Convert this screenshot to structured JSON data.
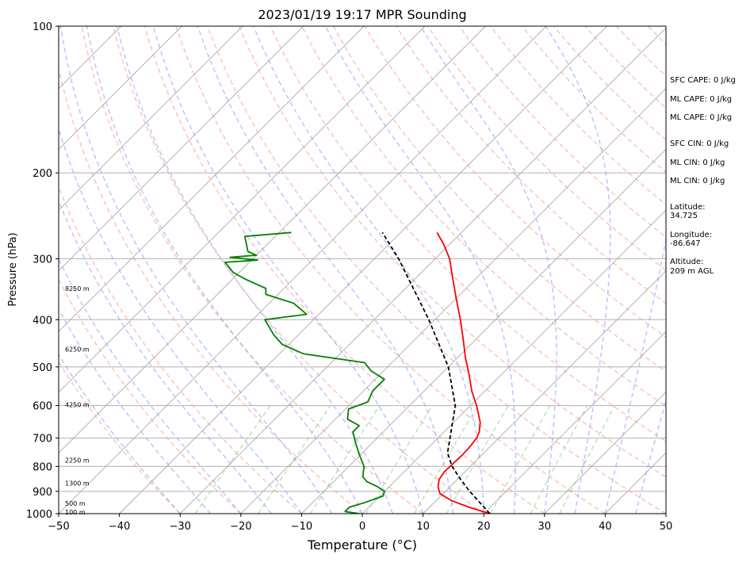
{
  "chart_data": {
    "type": "line",
    "title": "2023/01/19 19:17 MPR Sounding",
    "xlabel": "Temperature (°C)",
    "ylabel": "Pressure (hPa)",
    "xlim": [
      -50,
      50
    ],
    "ylim": [
      1000,
      100
    ],
    "yscale": "log",
    "skew": true,
    "grid": true,
    "x_ticks": [
      "−50",
      "−40",
      "−30",
      "−20",
      "−10",
      "0",
      "10",
      "20",
      "30",
      "40",
      "50"
    ],
    "y_ticks": [
      "1000",
      "900",
      "800",
      "700",
      "600",
      "500",
      "400",
      "300",
      "200",
      "100"
    ],
    "height_labels": [
      {
        "pressure": 992,
        "text": "100 m"
      },
      {
        "pressure": 953,
        "text": "500 m"
      },
      {
        "pressure": 865,
        "text": "1300 m"
      },
      {
        "pressure": 776,
        "text": "2250 m"
      },
      {
        "pressure": 598,
        "text": "4250 m"
      },
      {
        "pressure": 460,
        "text": "6250 m"
      },
      {
        "pressure": 345,
        "text": "8250 m"
      }
    ],
    "series": [
      {
        "name": "Temperature",
        "color": "#ff0000",
        "points": [
          [
            1000,
            21
          ],
          [
            970,
            16.5
          ],
          [
            940,
            12.5
          ],
          [
            910,
            9.5
          ],
          [
            880,
            8
          ],
          [
            850,
            7
          ],
          [
            820,
            6.6
          ],
          [
            790,
            6.7
          ],
          [
            760,
            6.8
          ],
          [
            730,
            6.7
          ],
          [
            700,
            6.4
          ],
          [
            680,
            5.8
          ],
          [
            650,
            4.4
          ],
          [
            600,
            1.0
          ],
          [
            560,
            -2.2
          ],
          [
            520,
            -5.2
          ],
          [
            480,
            -8.6
          ],
          [
            440,
            -12.0
          ],
          [
            400,
            -15.8
          ],
          [
            360,
            -20.2
          ],
          [
            320,
            -25.0
          ],
          [
            300,
            -27.6
          ],
          [
            280,
            -31.0
          ],
          [
            265,
            -34.0
          ]
        ]
      },
      {
        "name": "Dewpoint",
        "color": "#008000",
        "points": [
          [
            1000,
            -0.5
          ],
          [
            990,
            -3.2
          ],
          [
            970,
            -3.2
          ],
          [
            950,
            -1.5
          ],
          [
            920,
            0.5
          ],
          [
            900,
            0
          ],
          [
            880,
            -2
          ],
          [
            860,
            -4.5
          ],
          [
            840,
            -6
          ],
          [
            800,
            -7.5
          ],
          [
            760,
            -10
          ],
          [
            720,
            -12.5
          ],
          [
            680,
            -15
          ],
          [
            660,
            -15
          ],
          [
            640,
            -18
          ],
          [
            610,
            -19.5
          ],
          [
            590,
            -17.5
          ],
          [
            560,
            -18.5
          ],
          [
            530,
            -18.5
          ],
          [
            510,
            -22
          ],
          [
            490,
            -24.5
          ],
          [
            470,
            -36
          ],
          [
            450,
            -41
          ],
          [
            430,
            -44
          ],
          [
            400,
            -48
          ],
          [
            390,
            -42
          ],
          [
            370,
            -46
          ],
          [
            355,
            -52
          ],
          [
            345,
            -53
          ],
          [
            330,
            -58
          ],
          [
            320,
            -61
          ],
          [
            305,
            -64
          ],
          [
            302,
            -59
          ],
          [
            298,
            -64
          ],
          [
            295,
            -60
          ],
          [
            290,
            -62
          ],
          [
            270,
            -65
          ],
          [
            265,
            -58
          ]
        ]
      },
      {
        "name": "Parcel",
        "color": "#000000",
        "style": "dashed",
        "points": [
          [
            1000,
            21
          ],
          [
            900,
            14
          ],
          [
            850,
            10.5
          ],
          [
            800,
            7
          ],
          [
            750,
            4
          ],
          [
            700,
            2
          ],
          [
            600,
            -2.5
          ],
          [
            500,
            -10
          ],
          [
            400,
            -21
          ],
          [
            300,
            -36
          ],
          [
            265,
            -43
          ]
        ]
      }
    ],
    "background_lines": {
      "dry_adiabats_color": "#ff9999",
      "moist_adiabats_color": "#9999ff",
      "mixing_ratio_color": "#88cc88",
      "isotherms_color": "#aaaaaa"
    }
  },
  "side_panel": {
    "sfc_cape": "SFC CAPE: 0 J/kg",
    "ml_cape_1": "ML CAPE: 0 J/kg",
    "ml_cape_2": "ML CAPE: 0 J/kg",
    "sfc_cin": "SFC CIN: 0 J/kg",
    "ml_cin_1": "ML CIN: 0 J/kg",
    "ml_cin_2": "ML CIN: 0 J/kg",
    "latitude_label": "Latitude:",
    "latitude_value": "34.725",
    "longitude_label": "Longitude:",
    "longitude_value": "-86.647",
    "altitude_label": "Altitude:",
    "altitude_value": "209 m AGL"
  }
}
